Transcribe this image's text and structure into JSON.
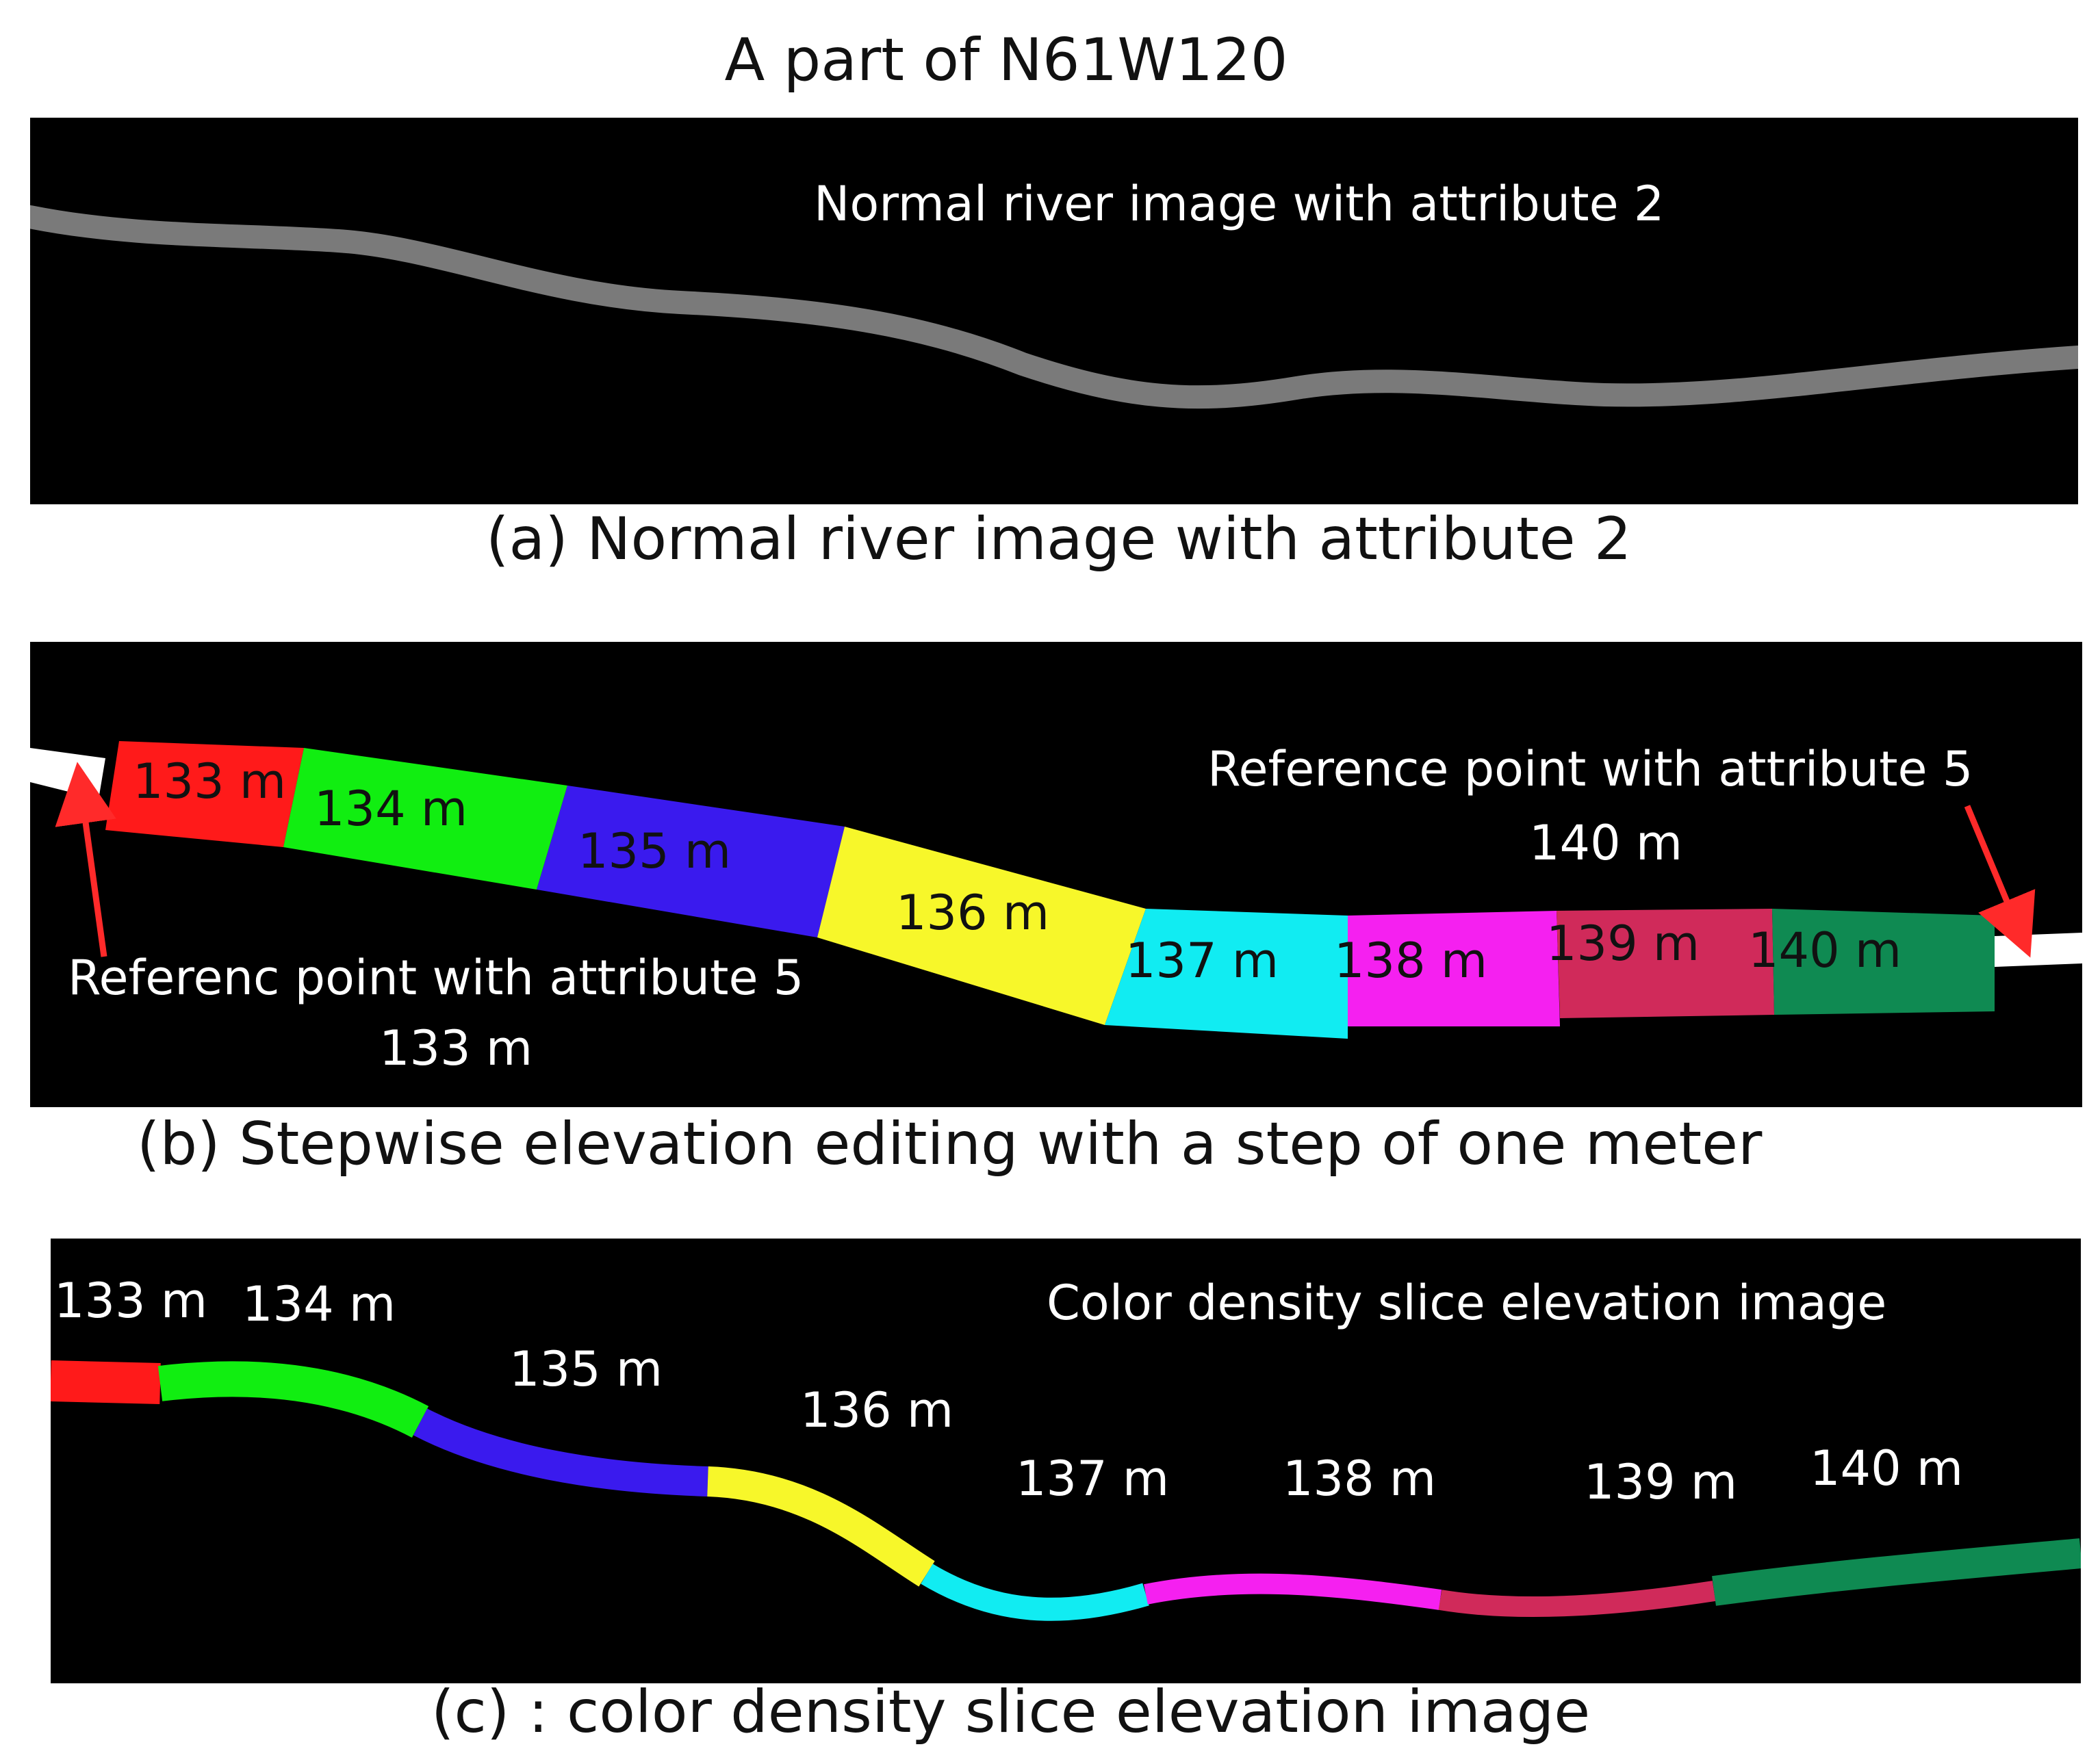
{
  "title": "A part of N61W120",
  "panel_a": {
    "label": "Normal river image with attribute 2",
    "caption": "(a) Normal river image with attribute 2"
  },
  "panel_b": {
    "segments": [
      "133 m",
      "134 m",
      "135 m",
      "136 m",
      "137 m",
      "138 m",
      "139 m",
      "140 m"
    ],
    "ref_left_label": "Referenc point with attribute 5",
    "ref_left_value": "133 m",
    "ref_right_label": "Reference point with attribute 5",
    "ref_right_value": "140 m",
    "caption": "(b) Stepwise elevation editing with a step of one meter"
  },
  "panel_c": {
    "label": "Color density slice elevation image",
    "segments": [
      "133 m",
      "134 m",
      "135 m",
      "136 m",
      "137 m",
      "138 m",
      "139 m",
      "140 m"
    ],
    "caption": "(c) : color density slice elevation image"
  },
  "colors": {
    "river_gray": "#7a7a7a",
    "red": "#ff1a1a",
    "green": "#11ee11",
    "blue": "#3a1aee",
    "yellow": "#f7f72a",
    "cyan": "#11ecf2",
    "magenta": "#f520f0",
    "crimson": "#d02a5a",
    "teal": "#0f8a52",
    "arrow": "#ff2a2a"
  }
}
